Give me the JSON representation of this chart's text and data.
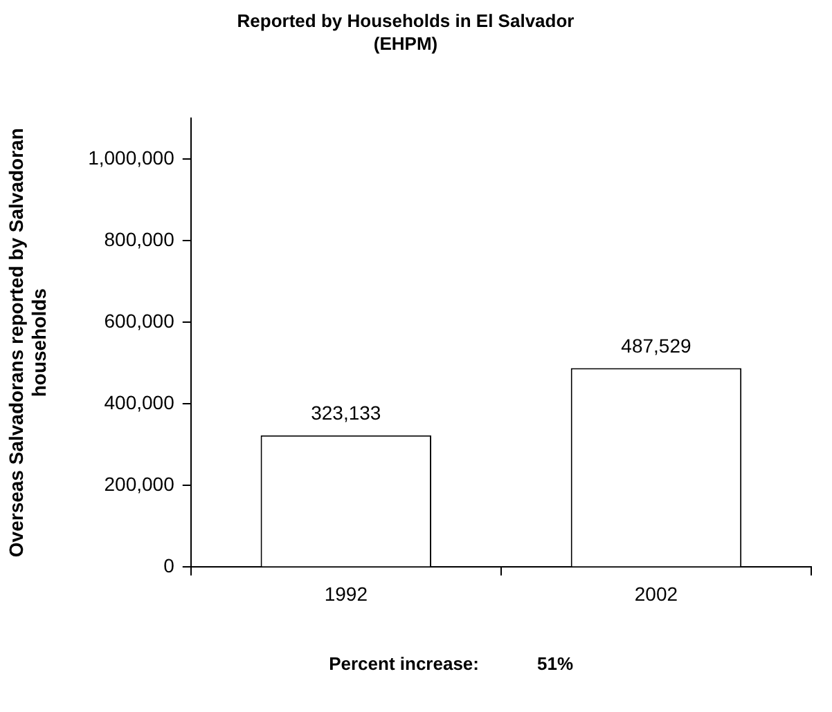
{
  "chart_data": {
    "type": "bar",
    "title": "Reported by Households in El Salvador\n(EHPM)",
    "ylabel": "Overseas Salvadorans reported by Salvadoran households",
    "categories": [
      "1992",
      "2002"
    ],
    "values": [
      323133,
      487529
    ],
    "value_labels": [
      "323,133",
      "487,529"
    ],
    "color": "#ffffff",
    "ylim": [
      0,
      1100000
    ],
    "yticks": [
      0,
      {
        "value": 200000,
        "label": "200,000"
      },
      {
        "value": 400000,
        "label": "400,000"
      },
      {
        "value": 600000,
        "label": "600,000"
      },
      {
        "value": 800000,
        "label": "800,000"
      },
      {
        "value": 1000000,
        "label": "1,000,000"
      }
    ],
    "grid": false,
    "legend": false,
    "annotations": [
      "Percent increase:     51%"
    ]
  }
}
